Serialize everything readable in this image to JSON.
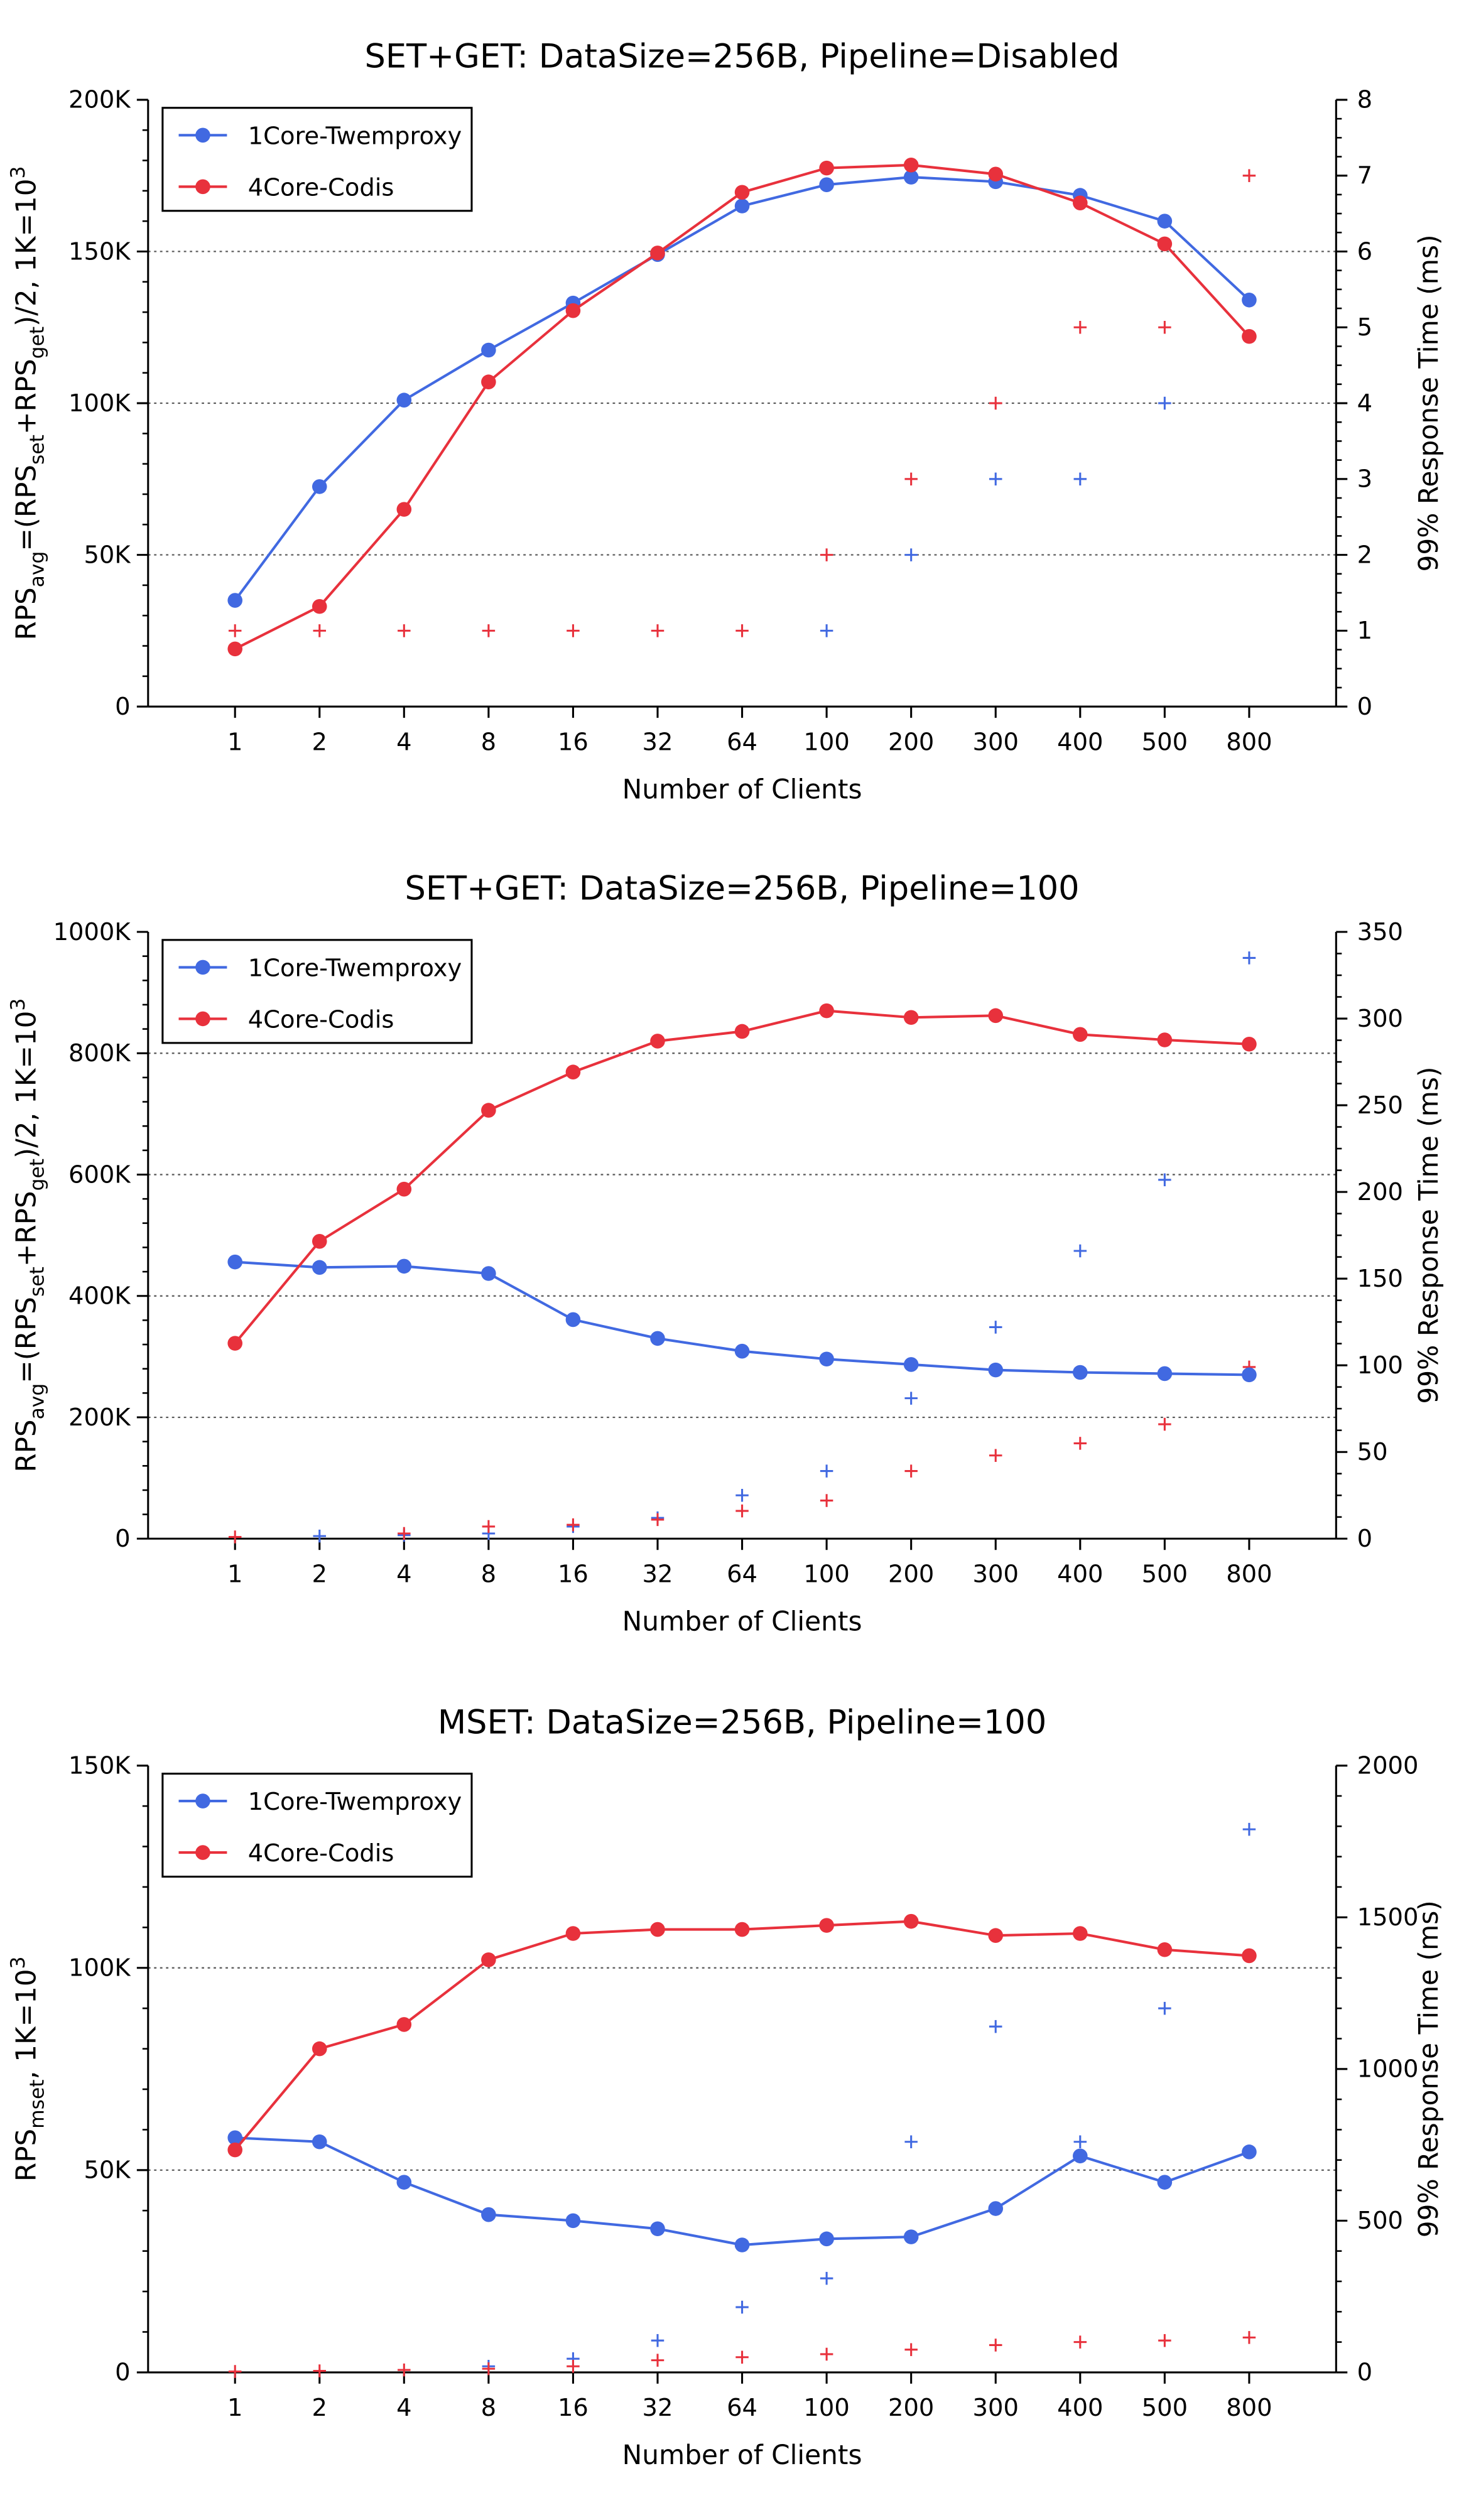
{
  "chart_data": [
    {
      "type": "line",
      "title": "SET+GET: DataSize=256B, Pipeline=Disabled",
      "xlabel": "Number of Clients",
      "ylabel": "RPS_avg=(RPS_set+RPS_get)/2, 1K=10^3",
      "y2label": "99% Response Time (ms)",
      "categories": [
        "1",
        "2",
        "4",
        "8",
        "16",
        "32",
        "64",
        "100",
        "200",
        "300",
        "400",
        "500",
        "800"
      ],
      "ylim": [
        0,
        200000
      ],
      "y2lim": [
        0,
        8
      ],
      "yticks": [
        0,
        50000,
        100000,
        150000,
        200000
      ],
      "ytick_labels": [
        "0",
        "50K",
        "100K",
        "150K",
        "200K"
      ],
      "y2ticks": [
        0,
        1,
        2,
        3,
        4,
        5,
        6,
        7,
        8
      ],
      "y2tick_labels": [
        "0",
        "1",
        "2",
        "3",
        "4",
        "5",
        "6",
        "7",
        "8"
      ],
      "grid": "horizontal dotted",
      "legend_position": "top-left",
      "series": [
        {
          "name": "1Core-Twemproxy",
          "color": "#4169e1",
          "axis": "left",
          "marker": "circle",
          "values": [
            35000,
            72500,
            101000,
            117500,
            133000,
            149000,
            165000,
            172000,
            174500,
            173000,
            168500,
            160000,
            134000
          ]
        },
        {
          "name": "4Core-Codis",
          "color": "#e8313c",
          "axis": "left",
          "marker": "circle",
          "values": [
            19000,
            33000,
            65000,
            107000,
            130500,
            149500,
            169500,
            177500,
            178500,
            175500,
            166000,
            152500,
            122000
          ]
        }
      ],
      "response_time_series": [
        {
          "series": "1Core-Twemproxy",
          "color": "#4169e1",
          "axis": "right",
          "marker": "plus",
          "values": [
            null,
            null,
            null,
            null,
            null,
            null,
            null,
            1,
            2,
            3,
            3,
            4,
            null
          ]
        },
        {
          "series": "4Core-Codis",
          "color": "#e8313c",
          "axis": "right",
          "marker": "plus",
          "values": [
            1,
            1,
            1,
            1,
            1,
            1,
            1,
            2,
            3,
            4,
            5,
            5,
            7
          ]
        }
      ]
    },
    {
      "type": "line",
      "title": "SET+GET: DataSize=256B, Pipeline=100",
      "xlabel": "Number of Clients",
      "ylabel": "RPS_avg=(RPS_set+RPS_get)/2, 1K=10^3",
      "y2label": "99% Response Time (ms)",
      "categories": [
        "1",
        "2",
        "4",
        "8",
        "16",
        "32",
        "64",
        "100",
        "200",
        "300",
        "400",
        "500",
        "800"
      ],
      "ylim": [
        0,
        1000000
      ],
      "y2lim": [
        0,
        350
      ],
      "yticks": [
        0,
        200000,
        400000,
        600000,
        800000,
        1000000
      ],
      "ytick_labels": [
        "0",
        "200K",
        "400K",
        "600K",
        "800K",
        "1000K"
      ],
      "y2ticks": [
        0,
        50,
        100,
        150,
        200,
        250,
        300,
        350
      ],
      "y2tick_labels": [
        "0",
        "50",
        "100",
        "150",
        "200",
        "250",
        "300",
        "350"
      ],
      "grid": "horizontal dotted",
      "legend_position": "top-left",
      "series": [
        {
          "name": "1Core-Twemproxy",
          "color": "#4169e1",
          "axis": "left",
          "marker": "circle",
          "values": [
            456000,
            447000,
            449000,
            437000,
            361000,
            330000,
            309000,
            296000,
            287000,
            278000,
            274000,
            272000,
            270000
          ]
        },
        {
          "name": "4Core-Codis",
          "color": "#e8313c",
          "axis": "left",
          "marker": "circle",
          "values": [
            322000,
            490000,
            576000,
            706000,
            769000,
            820000,
            836000,
            870000,
            859000,
            862000,
            831000,
            822000,
            815000
          ]
        }
      ],
      "response_time_series": [
        {
          "series": "1Core-Twemproxy",
          "color": "#4169e1",
          "axis": "right",
          "marker": "plus",
          "values": [
            null,
            1.5,
            2,
            3,
            7,
            12,
            25,
            39,
            81,
            122,
            166,
            207,
            335
          ]
        },
        {
          "series": "4Core-Codis",
          "color": "#e8313c",
          "axis": "right",
          "marker": "plus",
          "values": [
            1,
            null,
            3,
            7,
            8,
            11,
            16,
            22,
            39,
            48,
            55,
            66,
            99
          ]
        }
      ]
    },
    {
      "type": "line",
      "title": "MSET: DataSize=256B, Pipeline=100",
      "xlabel": "Number of Clients",
      "ylabel": "RPS_mset, 1K=10^3",
      "y2label": "99% Response Time (ms)",
      "categories": [
        "1",
        "2",
        "4",
        "8",
        "16",
        "32",
        "64",
        "100",
        "200",
        "300",
        "400",
        "500",
        "800"
      ],
      "ylim": [
        0,
        150000
      ],
      "y2lim": [
        0,
        2000
      ],
      "yticks": [
        0,
        50000,
        100000,
        150000
      ],
      "ytick_labels": [
        "0",
        "50K",
        "100K",
        "150K"
      ],
      "y2ticks": [
        0,
        500,
        1000,
        1500,
        2000
      ],
      "y2tick_labels": [
        "0",
        "500",
        "1000",
        "1500",
        "2000"
      ],
      "grid": "horizontal dotted",
      "legend_position": "top-left",
      "series": [
        {
          "name": "1Core-Twemproxy",
          "color": "#4169e1",
          "axis": "left",
          "marker": "circle",
          "values": [
            58000,
            57000,
            47000,
            39000,
            37500,
            35500,
            31500,
            33000,
            33500,
            40500,
            53500,
            47000,
            54500
          ]
        },
        {
          "name": "4Core-Codis",
          "color": "#e8313c",
          "axis": "left",
          "marker": "circle",
          "values": [
            55000,
            80000,
            86000,
            102000,
            108500,
            109500,
            109500,
            110500,
            111500,
            108000,
            108500,
            104500,
            103000
          ]
        }
      ],
      "response_time_series": [
        {
          "series": "1Core-Twemproxy",
          "color": "#4169e1",
          "axis": "right",
          "marker": "plus",
          "values": [
            null,
            null,
            null,
            20,
            45,
            105,
            215,
            310,
            760,
            1140,
            760,
            1200,
            1790
          ]
        },
        {
          "series": "4Core-Codis",
          "color": "#e8313c",
          "axis": "right",
          "marker": "plus",
          "values": [
            3,
            5,
            8,
            12,
            20,
            40,
            50,
            60,
            75,
            90,
            100,
            105,
            115
          ]
        }
      ]
    }
  ]
}
